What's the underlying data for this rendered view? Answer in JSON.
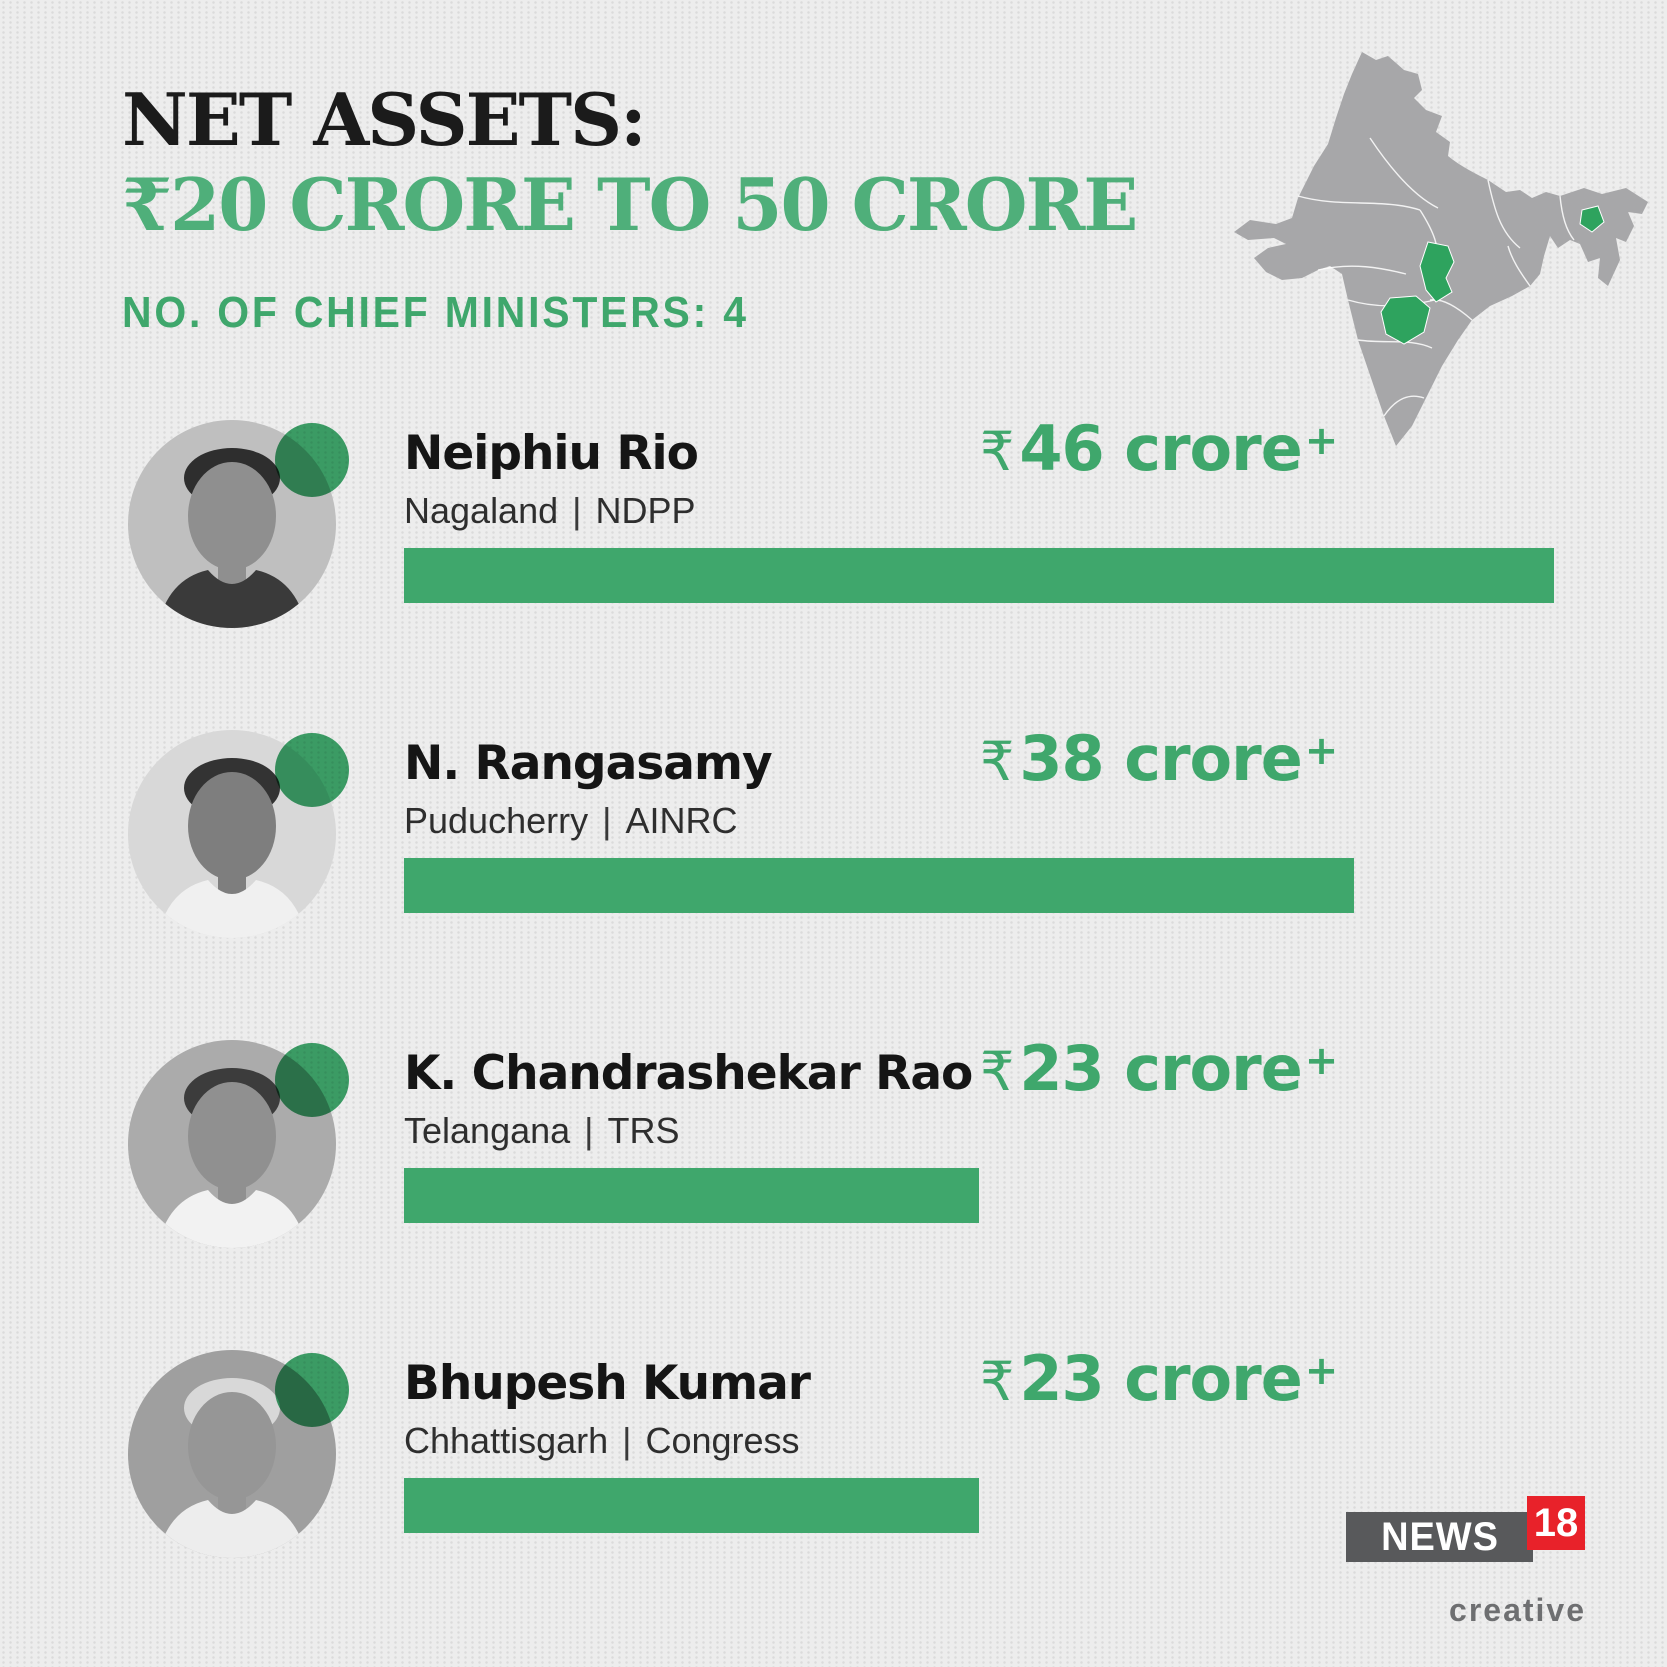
{
  "colors": {
    "accent_green": "#3FA76C",
    "title_green": "#4FAF7A",
    "map_green": "#2EA35E",
    "map_gray": "#A7A7A9",
    "heading_black": "#1B1B1B",
    "body_text": "#2E2E2E",
    "background": "#EDEDED",
    "logo_gray": "#58595B",
    "logo_red": "#E8222A",
    "logo_creative": "#6E6F71"
  },
  "header": {
    "title_line1": "NET ASSETS:",
    "title_line2": "₹20 CRORE TO 50 CRORE",
    "subtitle": "NO. OF CHIEF MINISTERS: 4"
  },
  "map": {
    "label": "India map",
    "highlighted_states": [
      "Nagaland",
      "Chhattisgarh",
      "Telangana"
    ]
  },
  "chart_data": {
    "type": "bar",
    "orientation": "horizontal",
    "title": "Net assets: ₹20 crore to 50 crore",
    "categories": [
      "Neiphiu Rio",
      "N. Rangasamy",
      "K. Chandrashekar Rao",
      "Bhupesh Kumar"
    ],
    "values": [
      46,
      38,
      23,
      23
    ],
    "value_labels": [
      "₹46 crore+",
      "₹38 crore+",
      "₹23 crore+",
      "₹23 crore+"
    ],
    "unit": "crore INR",
    "xlim": [
      0,
      46
    ],
    "bar_color": "#3FA76C",
    "grid": false,
    "legend": false
  },
  "ministers": [
    {
      "name": "Neiphiu Rio",
      "state": "Nagaland",
      "separator": "|",
      "party": "NDPP",
      "currency": "₹",
      "value": 46,
      "value_text": "46 crore",
      "plus": "+",
      "photo": {
        "bg": "#BFBFBF",
        "skin": "#8F8F8F",
        "hair": "#2E2E2E",
        "shirt": "#3A3A3A"
      }
    },
    {
      "name": "N. Rangasamy",
      "state": "Puducherry",
      "separator": "|",
      "party": "AINRC",
      "currency": "₹",
      "value": 38,
      "value_text": "38 crore",
      "plus": "+",
      "photo": {
        "bg": "#D8D8D8",
        "skin": "#7E7E7E",
        "hair": "#333333",
        "shirt": "#F0F0F0"
      }
    },
    {
      "name": "K. Chandrashekar Rao",
      "state": "Telangana",
      "separator": "|",
      "party": "TRS",
      "currency": "₹",
      "value": 23,
      "value_text": "23 crore",
      "plus": "+",
      "photo": {
        "bg": "#ABABAB",
        "skin": "#909090",
        "hair": "#3C3C3C",
        "shirt": "#F2F2F2"
      }
    },
    {
      "name": "Bhupesh Kumar",
      "state": "Chhattisgarh",
      "separator": "|",
      "party": "Congress",
      "currency": "₹",
      "value": 23,
      "value_text": "23 crore",
      "plus": "+",
      "photo": {
        "bg": "#9F9F9F",
        "skin": "#969696",
        "hair": "#D8D8D8",
        "shirt": "#EDEDED"
      }
    }
  ],
  "logo": {
    "news": "NEWS",
    "number": "18",
    "creative": "creative"
  }
}
